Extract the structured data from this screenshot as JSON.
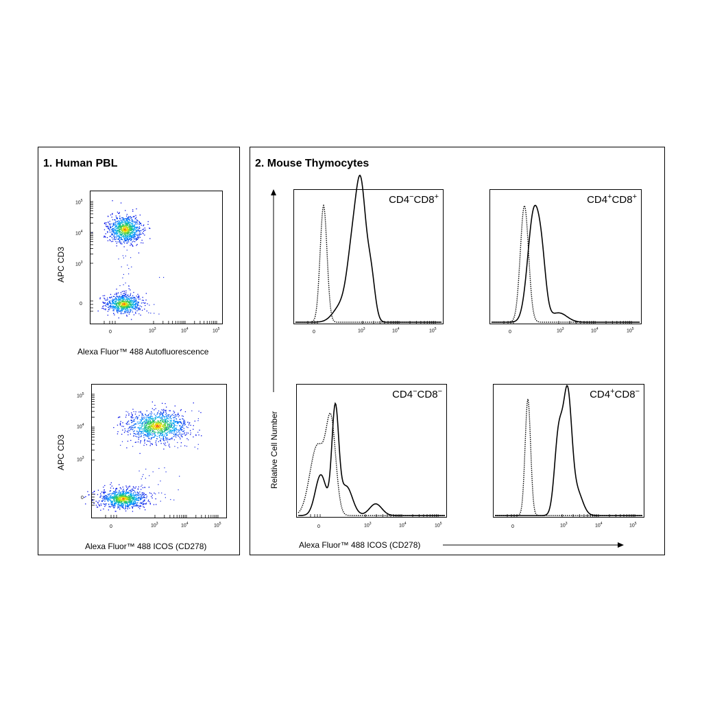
{
  "panels": {
    "left": {
      "title": "1. Human PBL"
    },
    "right": {
      "title": "2. Mouse Thymocytes"
    }
  },
  "chart_data": [
    {
      "type": "scatter",
      "name": "dotplot-autofluorescence",
      "xlabel": "Alexa Fluor™ 488 Autofluorescence",
      "ylabel": "APC CD3",
      "xticks": [
        "0",
        "10",
        "10",
        "10"
      ],
      "xtick_exp": [
        "",
        "3",
        "4",
        "5"
      ],
      "yticks": [
        "0",
        "10",
        "10",
        "10"
      ],
      "ytick_exp": [
        "",
        "3",
        "4",
        "5"
      ],
      "populations": [
        {
          "x_center": 200,
          "y_center": 13000,
          "density": "high"
        },
        {
          "x_center": 200,
          "y_center": 0,
          "density": "high"
        }
      ]
    },
    {
      "type": "scatter",
      "name": "dotplot-icos",
      "xlabel": "Alexa Fluor™ 488 ICOS (CD278)",
      "ylabel": "APC CD3",
      "xticks": [
        "0",
        "10",
        "10",
        "10"
      ],
      "xtick_exp": [
        "",
        "3",
        "4",
        "5"
      ],
      "yticks": [
        "0",
        "10",
        "10",
        "10"
      ],
      "ytick_exp": [
        "",
        "3",
        "4",
        "5"
      ],
      "populations": [
        {
          "x_center": 900,
          "y_center": 11000,
          "density": "high"
        },
        {
          "x_center": 150,
          "y_center": 0,
          "density": "high"
        }
      ]
    },
    {
      "type": "line",
      "name": "histograms",
      "xlabel": "Alexa Fluor™ 488 ICOS (CD278)",
      "ylabel": "Relative Cell Number",
      "xticks": [
        "0",
        "10",
        "10",
        "10"
      ],
      "xtick_exp": [
        "",
        "3",
        "4",
        "5"
      ],
      "plots": [
        {
          "label_a": "CD4",
          "sup_a": "−",
          "label_b": "CD8",
          "sup_b": "+"
        },
        {
          "label_a": "CD4",
          "sup_a": "+",
          "label_b": "CD8",
          "sup_b": "+"
        },
        {
          "label_a": "CD4",
          "sup_a": "−",
          "label_b": "CD8",
          "sup_b": "−"
        },
        {
          "label_a": "CD4",
          "sup_a": "+",
          "label_b": "CD8",
          "sup_b": "−"
        }
      ],
      "series": [
        {
          "style": "dotted"
        },
        {
          "style": "solid"
        }
      ]
    }
  ]
}
